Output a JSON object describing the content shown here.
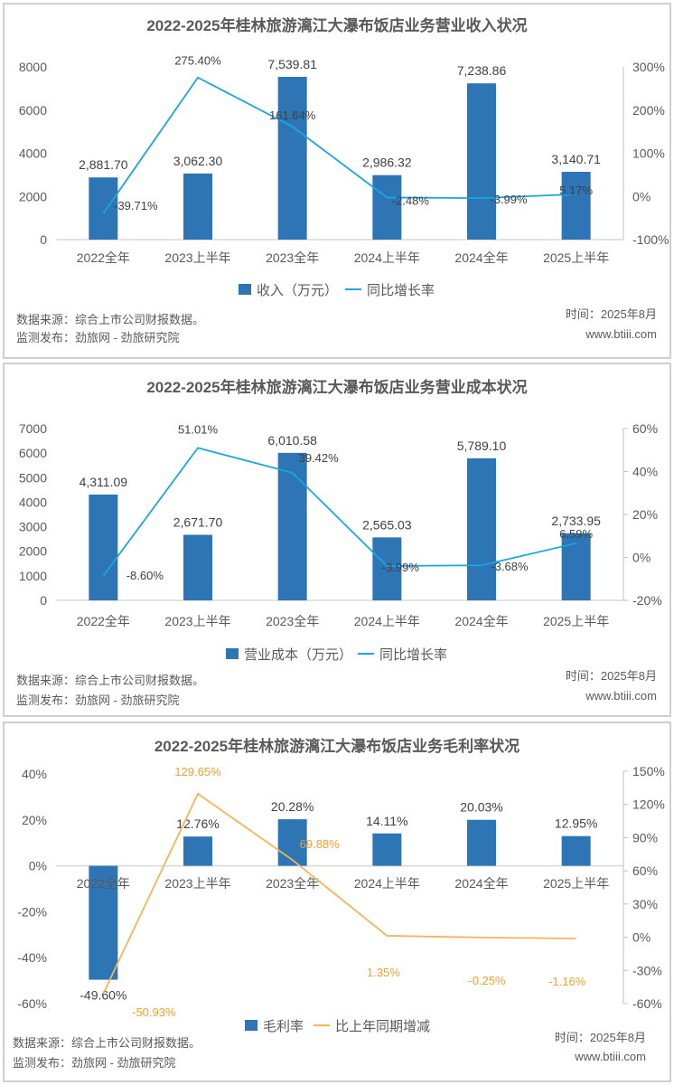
{
  "chart_data": [
    {
      "type": "bar",
      "title": "2022-2025年桂林旅游漓江大瀑布饭店业务营业收入状况",
      "categories": [
        "2022全年",
        "2023上半年",
        "2023全年",
        "2024上半年",
        "2024全年",
        "2025上半年"
      ],
      "series": [
        {
          "name": "收入（万元）",
          "type": "bar",
          "axis": "left",
          "values": [
            2881.7,
            3062.3,
            7539.81,
            2986.32,
            7238.86,
            3140.71
          ],
          "labels": [
            "2,881.70",
            "3,062.30",
            "7,539.81",
            "2,986.32",
            "7,238.86",
            "3,140.71"
          ]
        },
        {
          "name": "同比增长率",
          "type": "line",
          "axis": "right",
          "values": [
            -39.71,
            275.4,
            161.64,
            -2.48,
            -3.99,
            5.17
          ],
          "labels": [
            "-39.71%",
            "275.40%",
            "161.64%",
            "-2.48%",
            "-3.99%",
            "5.17%"
          ]
        }
      ],
      "ylim_left": [
        0,
        8000
      ],
      "yticks_left": [
        "0",
        "2000",
        "4000",
        "6000",
        "8000"
      ],
      "ylim_right": [
        -100,
        300
      ],
      "yticks_right": [
        "-100%",
        "0%",
        "100%",
        "200%",
        "300%"
      ],
      "legend": "bottom",
      "source": "数据来源：综合上市公司财报数据。",
      "publisher": "监测发布：劲旅网 - 劲旅研究院",
      "time": "时间：2025年8月",
      "site": "www.btiii.com"
    },
    {
      "type": "bar",
      "title": "2022-2025年桂林旅游漓江大瀑布饭店业务营业成本状况",
      "categories": [
        "2022全年",
        "2023上半年",
        "2023全年",
        "2024上半年",
        "2024全年",
        "2025上半年"
      ],
      "series": [
        {
          "name": "营业成本（万元）",
          "type": "bar",
          "axis": "left",
          "values": [
            4311.09,
            2671.7,
            6010.58,
            2565.03,
            5789.1,
            2733.95
          ],
          "labels": [
            "4,311.09",
            "2,671.70",
            "6,010.58",
            "2,565.03",
            "5,789.10",
            "2,733.95"
          ]
        },
        {
          "name": "同比增长率",
          "type": "line",
          "axis": "right",
          "values": [
            -8.6,
            51.01,
            39.42,
            -3.99,
            -3.68,
            6.59
          ],
          "labels": [
            "-8.60%",
            "51.01%",
            "39.42%",
            "-3.99%",
            "-3.68%",
            "6.59%"
          ]
        }
      ],
      "ylim_left": [
        0,
        7000
      ],
      "yticks_left": [
        "0",
        "1000",
        "2000",
        "3000",
        "4000",
        "5000",
        "6000",
        "7000"
      ],
      "ylim_right": [
        -20,
        60
      ],
      "yticks_right": [
        "-20%",
        "0%",
        "20%",
        "40%",
        "60%"
      ],
      "legend": "bottom",
      "source": "数据来源：综合上市公司财报数据。",
      "publisher": "监测发布：劲旅网 - 劲旅研究院",
      "time": "时间：2025年8月",
      "site": "www.btiii.com"
    },
    {
      "type": "bar",
      "title": "2022-2025年桂林旅游漓江大瀑布饭店业务毛利率状况",
      "categories": [
        "2022全年",
        "2023上半年",
        "2023全年",
        "2024上半年",
        "2024全年",
        "2025上半年"
      ],
      "series": [
        {
          "name": "毛利率",
          "type": "bar",
          "axis": "left",
          "values": [
            -49.6,
            12.76,
            20.28,
            14.11,
            20.03,
            12.95
          ],
          "labels": [
            "-49.60%",
            "12.76%",
            "20.28%",
            "14.11%",
            "20.03%",
            "12.95%"
          ]
        },
        {
          "name": "比上年同期增减",
          "type": "line",
          "axis": "right",
          "values": [
            -50.93,
            129.65,
            69.88,
            1.35,
            -0.25,
            -1.16
          ],
          "labels": [
            "-50.93%",
            "129.65%",
            "69.88%",
            "1.35%",
            "-0.25%",
            "-1.16%"
          ]
        }
      ],
      "ylim_left": [
        -60,
        40
      ],
      "yticks_left": [
        "-60%",
        "-40%",
        "-20%",
        "0%",
        "20%",
        "40%"
      ],
      "ylim_right": [
        -60,
        150
      ],
      "yticks_right": [
        "-60%",
        "-30%",
        "0%",
        "30%",
        "60%",
        "90%",
        "120%",
        "150%"
      ],
      "legend": "bottom",
      "source": "数据来源：综合上市公司财报数据。",
      "publisher": "监测发布：劲旅网 - 劲旅研究院",
      "time": "时间：2025年8月",
      "site": "www.btiii.com"
    }
  ],
  "colors": {
    "bar": "#2e75b6",
    "line_blue": "#1aa6e0",
    "line_orange": "#f5b556",
    "text": "#595959",
    "label": "#404040",
    "orange_label": "#f0a030"
  }
}
